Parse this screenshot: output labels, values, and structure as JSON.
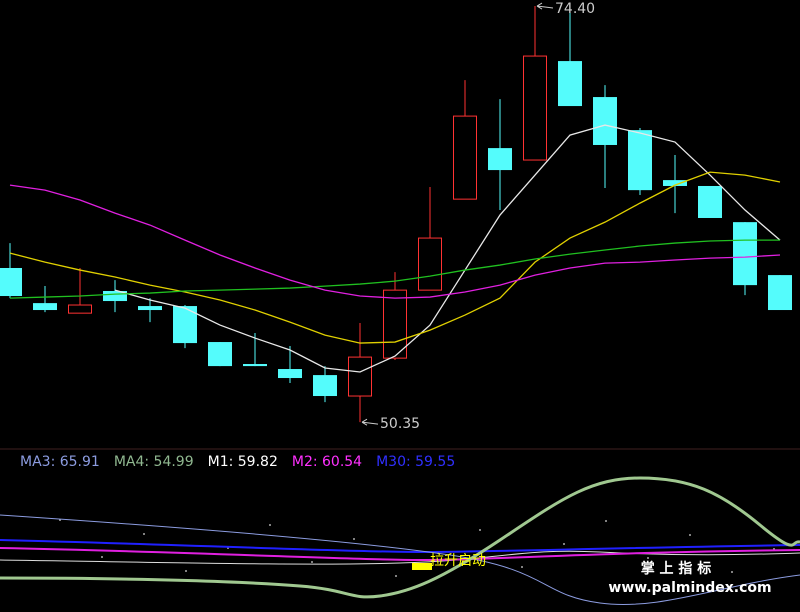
{
  "chart_data": {
    "type": "candlestick",
    "ylim": [
      48.74,
      74.75
    ],
    "up_color": "#ff3232",
    "down_color": "#54fcfc",
    "candles": [
      {
        "open": 59.26,
        "high": 60.7,
        "low": 57.52,
        "close": 57.64
      },
      {
        "open": 57.23,
        "high": 58.22,
        "low": 56.71,
        "close": 56.83
      },
      {
        "open": 56.65,
        "high": 59.26,
        "low": 56.65,
        "close": 57.12
      },
      {
        "open": 57.93,
        "high": 58.56,
        "low": 56.71,
        "close": 57.35
      },
      {
        "open": 57.06,
        "high": 57.52,
        "low": 56.13,
        "close": 56.83
      },
      {
        "open": 57.06,
        "high": 57.12,
        "low": 54.63,
        "close": 54.92
      },
      {
        "open": 54.98,
        "high": 54.98,
        "low": 53.59,
        "close": 53.59
      },
      {
        "open": 53.71,
        "high": 55.5,
        "low": 53.59,
        "close": 53.59
      },
      {
        "open": 53.42,
        "high": 54.75,
        "low": 52.61,
        "close": 52.9
      },
      {
        "open": 53.07,
        "high": 53.59,
        "low": 51.51,
        "close": 51.86
      },
      {
        "open": 51.86,
        "high": 56.08,
        "low": 50.35,
        "close": 54.11
      },
      {
        "open": 54.05,
        "high": 59.02,
        "low": 53.94,
        "close": 57.98
      },
      {
        "open": 57.98,
        "high": 63.94,
        "low": 57.98,
        "close": 60.99
      },
      {
        "open": 63.24,
        "high": 70.12,
        "low": 63.24,
        "close": 68.04
      },
      {
        "open": 66.19,
        "high": 69.02,
        "low": 62.61,
        "close": 64.92
      },
      {
        "open": 65.5,
        "high": 74.4,
        "low": 65.5,
        "close": 71.51
      },
      {
        "open": 71.22,
        "high": 74.05,
        "low": 68.62,
        "close": 68.62
      },
      {
        "open": 69.14,
        "high": 69.83,
        "low": 63.88,
        "close": 66.37
      },
      {
        "open": 67.23,
        "high": 67.35,
        "low": 63.48,
        "close": 63.76
      },
      {
        "open": 64.34,
        "high": 65.79,
        "low": 62.43,
        "close": 64.0
      },
      {
        "open": 64.0,
        "high": 64.0,
        "low": 62.15,
        "close": 62.15
      },
      {
        "open": 61.91,
        "high": 61.91,
        "low": 57.69,
        "close": 58.27
      },
      {
        "open": 58.85,
        "high": 58.85,
        "low": 56.83,
        "close": 56.83
      }
    ],
    "ma_lines": [
      {
        "color": "#e8e8e8",
        "values": [
          null,
          null,
          null,
          57.98,
          57.41,
          56.94,
          55.96,
          55.21,
          54.52,
          53.48,
          53.25,
          54.17,
          55.96,
          59.14,
          62.32,
          64.63,
          66.94,
          67.52,
          67.06,
          66.54,
          64.63,
          62.61,
          60.87
        ]
      },
      {
        "color": "#e0d000",
        "values": [
          60.12,
          59.6,
          59.14,
          58.74,
          58.27,
          57.87,
          57.41,
          56.83,
          56.13,
          55.38,
          54.92,
          54.98,
          55.67,
          56.54,
          57.52,
          59.6,
          60.99,
          61.91,
          63.01,
          64.05,
          64.8,
          64.63,
          64.23
        ]
      },
      {
        "color": "#20c020",
        "values": [
          57.52,
          57.58,
          57.64,
          57.75,
          57.81,
          57.93,
          57.98,
          58.04,
          58.1,
          58.21,
          58.33,
          58.5,
          58.79,
          59.14,
          59.43,
          59.78,
          60.06,
          60.3,
          60.53,
          60.7,
          60.82,
          60.87,
          60.87
        ]
      },
      {
        "color": "#e020e0",
        "values": [
          64.05,
          63.76,
          63.19,
          62.43,
          61.74,
          60.87,
          60.01,
          59.26,
          58.56,
          57.98,
          57.64,
          57.52,
          57.58,
          57.87,
          58.27,
          58.85,
          59.26,
          59.54,
          59.6,
          59.72,
          59.83,
          59.89,
          60.01
        ]
      }
    ],
    "high_label": "74.40",
    "low_label": "50.35",
    "indicator_legend": [
      {
        "text": "MA3: 65.91",
        "color": "#8c9ce0"
      },
      {
        "text": "MA4: 54.99",
        "color": "#90b890"
      },
      {
        "text": "M1: 59.82",
        "color": "#ffffff"
      },
      {
        "text": "M2: 60.54",
        "color": "#ff30ff"
      },
      {
        "text": "M30: 59.55",
        "color": "#3030ff"
      }
    ],
    "signal_label": "拉升启动",
    "watermark": {
      "title": "掌 上 指 标",
      "url": "www.palmindex.com"
    }
  }
}
